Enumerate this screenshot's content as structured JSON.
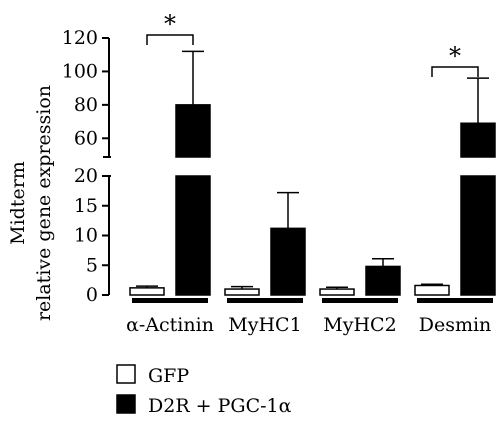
{
  "chart_data": {
    "type": "bar",
    "title": "",
    "ylabel_line1": "Midterm",
    "ylabel_line2": "relative gene expression",
    "xlabel": "",
    "axis_break": true,
    "lower_segment": {
      "ylim": [
        0,
        20
      ],
      "ticks": [
        "0",
        "5",
        "10",
        "15",
        "20"
      ]
    },
    "upper_segment": {
      "ylim": [
        50,
        120
      ],
      "ticks": [
        "60",
        "80",
        "100",
        "120"
      ]
    },
    "categories": [
      "α-Actinin",
      "MyHC1",
      "MyHC2",
      "Desmin"
    ],
    "series": [
      {
        "name": "GFP",
        "color": "#ffffff",
        "values": [
          1.2,
          1.0,
          1.0,
          1.6
        ],
        "errors": [
          0.3,
          0.4,
          0.3,
          0.2
        ]
      },
      {
        "name": "D2R + PGC-1α",
        "color": "#000000",
        "values": [
          80,
          11.2,
          4.8,
          69
        ],
        "errors": [
          32,
          6.0,
          1.3,
          27
        ]
      }
    ],
    "significance": [
      {
        "category": "α-Actinin",
        "label": "*"
      },
      {
        "category": "Desmin",
        "label": "*"
      }
    ],
    "legend_position": "bottom-left"
  }
}
